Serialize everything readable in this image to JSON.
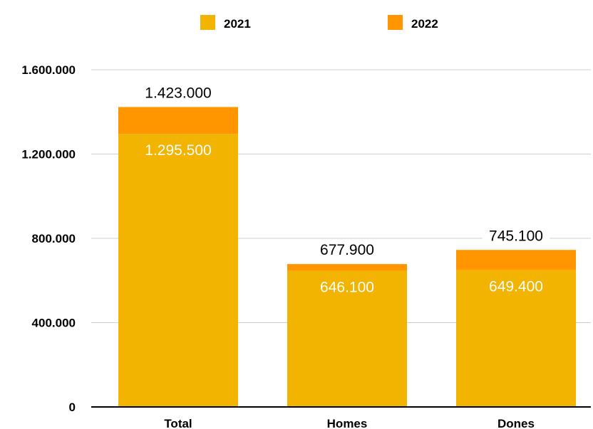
{
  "chart_data": {
    "type": "bar",
    "stacked": true,
    "categories": [
      "Total",
      "Homes",
      "Dones"
    ],
    "series": [
      {
        "name": "2021",
        "color": "#F2B400",
        "values": [
          1295500,
          646100,
          649400
        ]
      },
      {
        "name": "2022",
        "color": "#FF9600",
        "values": [
          127500,
          31800,
          95700
        ]
      }
    ],
    "data_labels": {
      "inside": [
        "1.295.500",
        "646.100",
        "649.400"
      ],
      "top": [
        "1.423.000",
        "677.900",
        "745.100"
      ]
    },
    "yticks": [
      {
        "value": 0,
        "label": "0"
      },
      {
        "value": 400000,
        "label": "400.000"
      },
      {
        "value": 800000,
        "label": "800.000"
      },
      {
        "value": 1200000,
        "label": "1.200.000"
      },
      {
        "value": 1600000,
        "label": "1.600.000"
      }
    ],
    "ylim": [
      0,
      1600000
    ],
    "grid": true,
    "legend_position": "top"
  }
}
